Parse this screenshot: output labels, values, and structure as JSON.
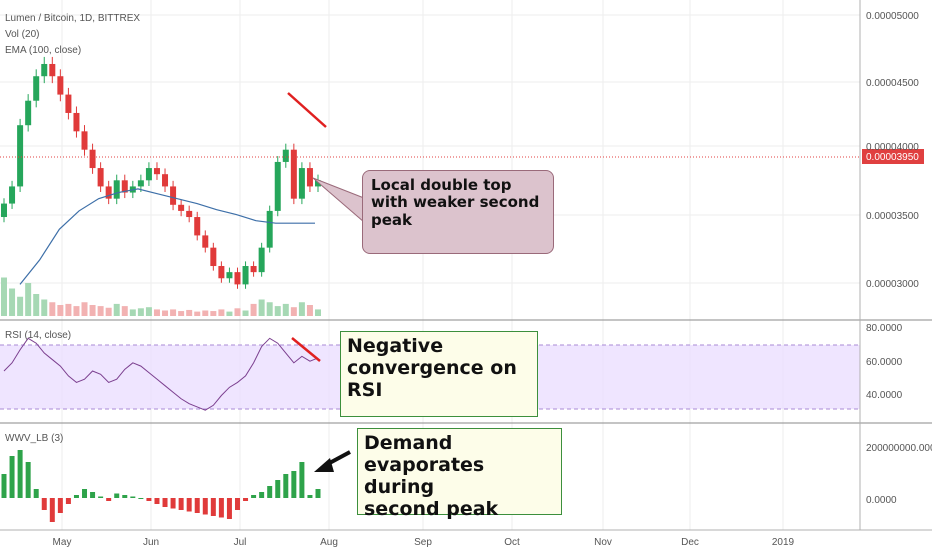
{
  "chart_data": {
    "type": "candlestick",
    "title": "Lumen / Bitcoin, 1D, BITTREX",
    "indicators": {
      "volume": "Vol (20)",
      "ema": "EMA (100, close)",
      "rsi": "RSI (14, close)",
      "wwv": "WWV_LB (3)"
    },
    "x_ticks": [
      "May",
      "Jun",
      "Jul",
      "Aug",
      "Sep",
      "Oct",
      "Nov",
      "Dec",
      "2019"
    ],
    "price_axis": {
      "ticks": [
        "0.00005000",
        "0.00004500",
        "0.00004000",
        "0.00003500",
        "0.00003000"
      ],
      "current": "0.00003950",
      "ylim": [
        2.75e-05,
        5.2e-05
      ]
    },
    "rsi_axis": {
      "ticks": [
        "80.0000",
        "60.0000",
        "40.0000"
      ],
      "ylim": [
        25,
        85
      ],
      "band": [
        30,
        70
      ]
    },
    "wwv_axis": {
      "ticks": [
        "200000000.0000",
        "0.0000"
      ]
    },
    "price_series": [
      3.66e-05,
      3.8e-05,
      4.3e-05,
      4.5e-05,
      4.7e-05,
      4.8e-05,
      4.7e-05,
      4.55e-05,
      4.4e-05,
      4.25e-05,
      4.1e-05,
      3.95e-05,
      3.8e-05,
      3.7e-05,
      3.85e-05,
      3.75e-05,
      3.8e-05,
      3.85e-05,
      3.95e-05,
      3.9e-05,
      3.8e-05,
      3.65e-05,
      3.6e-05,
      3.55e-05,
      3.4e-05,
      3.3e-05,
      3.15e-05,
      3.05e-05,
      3.1e-05,
      3e-05,
      3.15e-05,
      3.1e-05,
      3.3e-05,
      3.6e-05,
      4e-05,
      4.1e-05,
      3.7e-05,
      3.95e-05,
      3.8e-05,
      3.85e-05
    ],
    "ema_series": [
      3e-05,
      3.2e-05,
      3.45e-05,
      3.6e-05,
      3.7e-05,
      3.75e-05,
      3.78e-05,
      3.74e-05,
      3.7e-05,
      3.66e-05,
      3.61e-05,
      3.57e-05,
      3.52e-05,
      3.5e-05,
      3.5e-05,
      3.5e-05
    ],
    "volume_series": [
      70,
      50,
      35,
      60,
      40,
      30,
      25,
      20,
      22,
      18,
      25,
      20,
      18,
      15,
      22,
      18,
      12,
      14,
      16,
      12,
      10,
      12,
      9,
      11,
      8,
      10,
      9,
      12,
      8,
      14,
      10,
      22,
      30,
      25,
      18,
      22,
      16,
      25,
      20,
      12
    ],
    "rsi_series": [
      55,
      60,
      68,
      75,
      72,
      66,
      62,
      58,
      52,
      48,
      50,
      55,
      53,
      48,
      50,
      56,
      60,
      58,
      54,
      50,
      46,
      42,
      38,
      35,
      33,
      31,
      34,
      40,
      45,
      48,
      52,
      60,
      70,
      75,
      72,
      66,
      60,
      64,
      61,
      63
    ],
    "wwv_series": [
      80,
      140,
      160,
      120,
      30,
      -40,
      -80,
      -50,
      -20,
      10,
      30,
      20,
      5,
      -10,
      15,
      10,
      5,
      0,
      -10,
      -20,
      -30,
      -35,
      -40,
      -45,
      -50,
      -55,
      -60,
      -65,
      -70,
      -40,
      -10,
      10,
      20,
      40,
      60,
      80,
      90,
      120,
      10,
      30
    ],
    "annotations": [
      {
        "lines": [
          "Local double top",
          "with weaker second",
          "peak"
        ]
      },
      {
        "lines": [
          "Negative",
          "convergence on",
          "RSI"
        ]
      },
      {
        "lines": [
          "Demand",
          "evaporates during",
          "second peak"
        ]
      }
    ]
  }
}
